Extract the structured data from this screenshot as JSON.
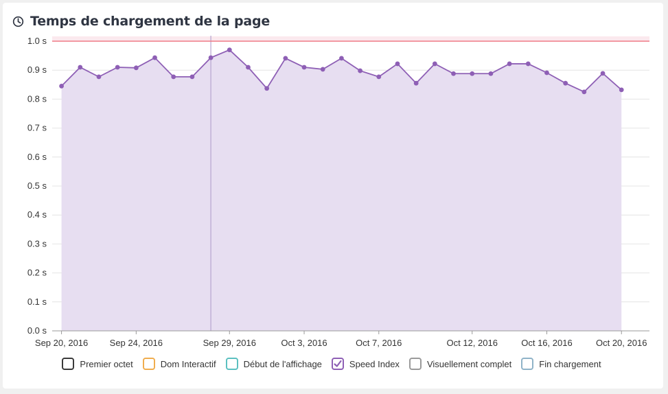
{
  "title": "Temps de chargement de la page",
  "legend": [
    {
      "label": "Premier octet",
      "color": "#3a3a3a",
      "checked": false
    },
    {
      "label": "Dom Interactif",
      "color": "#f0ad4e",
      "checked": false
    },
    {
      "label": "Début de l'affichage",
      "color": "#5bc0c0",
      "checked": false
    },
    {
      "label": "Speed Index",
      "color": "#8e5fb5",
      "checked": true
    },
    {
      "label": "Visuellement complet",
      "color": "#9a9a9a",
      "checked": false
    },
    {
      "label": "Fin chargement",
      "color": "#8fb3c8",
      "checked": false
    }
  ],
  "chart_data": {
    "type": "area",
    "title": "Temps de chargement de la page",
    "xlabel": "",
    "ylabel": "",
    "ylim": [
      0,
      1.0
    ],
    "y_ticks": [
      "0.0 s",
      "0.1 s",
      "0.2 s",
      "0.3 s",
      "0.4 s",
      "0.5 s",
      "0.6 s",
      "0.7 s",
      "0.8 s",
      "0.9 s",
      "1.0 s"
    ],
    "x_tick_labels": [
      {
        "label": "Sep 20, 2016",
        "date": "2016-09-20"
      },
      {
        "label": "Sep 24, 2016",
        "date": "2016-09-24"
      },
      {
        "label": "Sep 29, 2016",
        "date": "2016-09-29"
      },
      {
        "label": "Oct 3, 2016",
        "date": "2016-10-03"
      },
      {
        "label": "Oct 7, 2016",
        "date": "2016-10-07"
      },
      {
        "label": "Oct 12, 2016",
        "date": "2016-10-12"
      },
      {
        "label": "Oct 16, 2016",
        "date": "2016-10-16"
      },
      {
        "label": "Oct 20, 2016",
        "date": "2016-10-20"
      }
    ],
    "xlim": [
      "2016-09-19T12:00",
      "2016-10-21T12:00"
    ],
    "threshold": 1.0,
    "highlight_date": "2016-09-28",
    "grid": true,
    "legend_position": "bottom",
    "series": [
      {
        "name": "Speed Index",
        "color": "#8e5fb5",
        "fill": "#e7def1",
        "points": [
          {
            "x": "2016-09-20",
            "y": 0.845
          },
          {
            "x": "2016-09-21",
            "y": 0.91
          },
          {
            "x": "2016-09-22",
            "y": 0.877
          },
          {
            "x": "2016-09-23",
            "y": 0.91
          },
          {
            "x": "2016-09-24",
            "y": 0.908
          },
          {
            "x": "2016-09-25",
            "y": 0.943
          },
          {
            "x": "2016-09-26",
            "y": 0.877
          },
          {
            "x": "2016-09-27",
            "y": 0.877
          },
          {
            "x": "2016-09-28",
            "y": 0.943
          },
          {
            "x": "2016-09-29",
            "y": 0.97
          },
          {
            "x": "2016-09-30",
            "y": 0.91
          },
          {
            "x": "2016-10-01",
            "y": 0.837
          },
          {
            "x": "2016-10-02",
            "y": 0.941
          },
          {
            "x": "2016-10-03",
            "y": 0.91
          },
          {
            "x": "2016-10-04",
            "y": 0.903
          },
          {
            "x": "2016-10-05",
            "y": 0.941
          },
          {
            "x": "2016-10-06",
            "y": 0.898
          },
          {
            "x": "2016-10-07",
            "y": 0.877
          },
          {
            "x": "2016-10-08",
            "y": 0.922
          },
          {
            "x": "2016-10-09",
            "y": 0.855
          },
          {
            "x": "2016-10-10",
            "y": 0.922
          },
          {
            "x": "2016-10-11",
            "y": 0.888
          },
          {
            "x": "2016-10-12",
            "y": 0.888
          },
          {
            "x": "2016-10-13",
            "y": 0.888
          },
          {
            "x": "2016-10-14",
            "y": 0.922
          },
          {
            "x": "2016-10-15",
            "y": 0.922
          },
          {
            "x": "2016-10-16",
            "y": 0.891
          },
          {
            "x": "2016-10-17",
            "y": 0.855
          },
          {
            "x": "2016-10-18",
            "y": 0.825
          },
          {
            "x": "2016-10-19",
            "y": 0.889
          },
          {
            "x": "2016-10-20",
            "y": 0.832
          }
        ]
      }
    ]
  }
}
